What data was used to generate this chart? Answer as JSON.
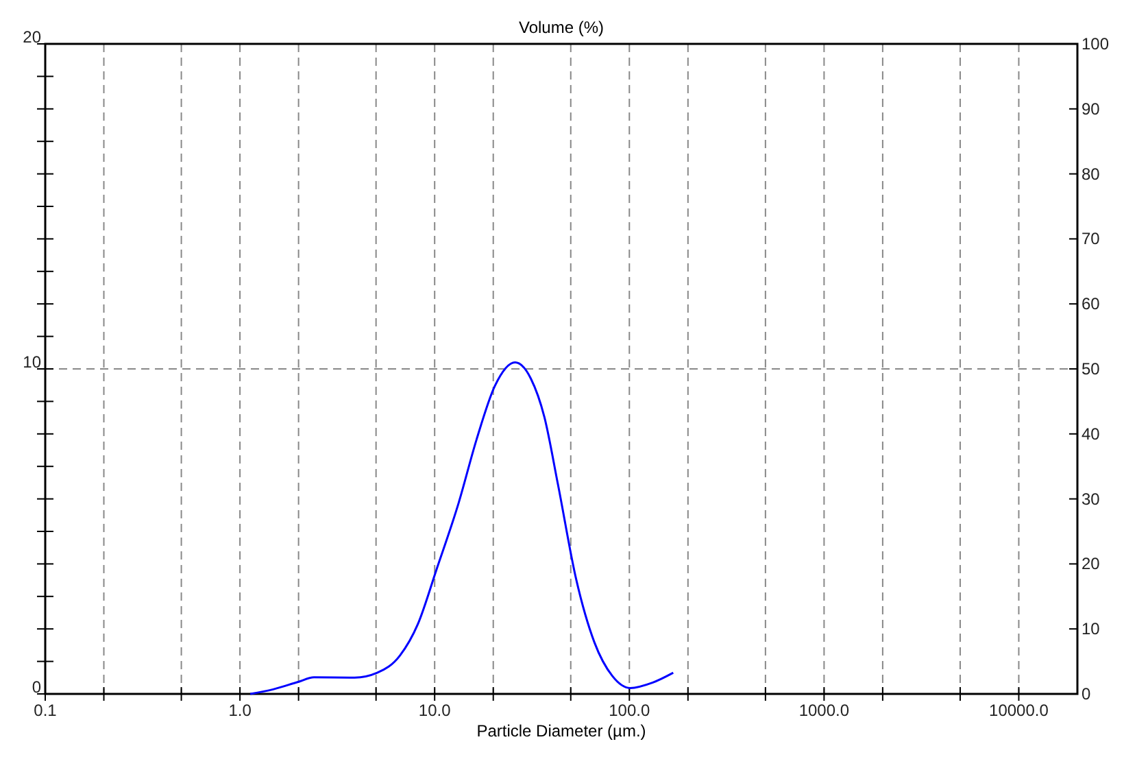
{
  "chart_data": {
    "type": "line",
    "title": "Volume (%)",
    "xlabel": "Particle Diameter (µm.)",
    "log": "x",
    "xlim": [
      0.1,
      20000
    ],
    "xticks": [
      {
        "value": 0.1,
        "label": "0.1"
      },
      {
        "value": 0.2,
        "label": null
      },
      {
        "value": 0.5,
        "label": null
      },
      {
        "value": 1,
        "label": "1.0"
      },
      {
        "value": 2,
        "label": null
      },
      {
        "value": 5,
        "label": null
      },
      {
        "value": 10,
        "label": "10.0"
      },
      {
        "value": 20,
        "label": null
      },
      {
        "value": 50,
        "label": null
      },
      {
        "value": 100,
        "label": "100.0"
      },
      {
        "value": 200,
        "label": null
      },
      {
        "value": 500,
        "label": null
      },
      {
        "value": 1000,
        "label": "1000.0"
      },
      {
        "value": 2000,
        "label": null
      },
      {
        "value": 5000,
        "label": null
      },
      {
        "value": 10000,
        "label": "10000.0"
      }
    ],
    "ylim": [
      0,
      20
    ],
    "yticks": [
      0,
      {
        "value": 1,
        "label": null
      },
      {
        "value": 2,
        "label": null
      },
      {
        "value": 3,
        "label": null
      },
      {
        "value": 4,
        "label": null
      },
      {
        "value": 5,
        "label": null
      },
      {
        "value": 6,
        "label": null
      },
      {
        "value": 7,
        "label": null
      },
      {
        "value": 8,
        "label": null
      },
      {
        "value": 9,
        "label": null
      },
      10,
      {
        "value": 11,
        "label": null
      },
      {
        "value": 12,
        "label": null
      },
      {
        "value": 13,
        "label": null
      },
      {
        "value": 14,
        "label": null
      },
      {
        "value": 15,
        "label": null
      },
      {
        "value": 16,
        "label": null
      },
      {
        "value": 17,
        "label": null
      },
      {
        "value": 18,
        "label": null
      },
      {
        "value": 19,
        "label": null
      },
      20
    ],
    "y2lim": [
      0,
      100
    ],
    "y2ticks": [
      0,
      10,
      20,
      30,
      40,
      50,
      60,
      70,
      80,
      90,
      100
    ],
    "grid": "x",
    "ref_lines": [
      {
        "axis": "y",
        "value": 10,
        "line_style": "dashed",
        "color": "#888888"
      }
    ],
    "x": [
      1.13,
      1.48,
      1.99,
      2.4,
      3.88,
      5.07,
      6.63,
      8.2,
      10.2,
      13.3,
      16.4,
      20.4,
      25.9,
      31.2,
      36.6,
      43,
      53.3,
      66.1,
      81.8,
      101,
      132,
      168
    ],
    "series": [
      {
        "color": "#0000ff",
        "values": [
          0,
          0.14,
          0.37,
          0.51,
          0.5,
          0.65,
          1.18,
          2.15,
          3.81,
          5.89,
          7.82,
          9.48,
          10.2,
          9.7,
          8.52,
          6.44,
          3.53,
          1.59,
          0.55,
          0.18,
          0.35,
          0.65
        ]
      }
    ]
  }
}
